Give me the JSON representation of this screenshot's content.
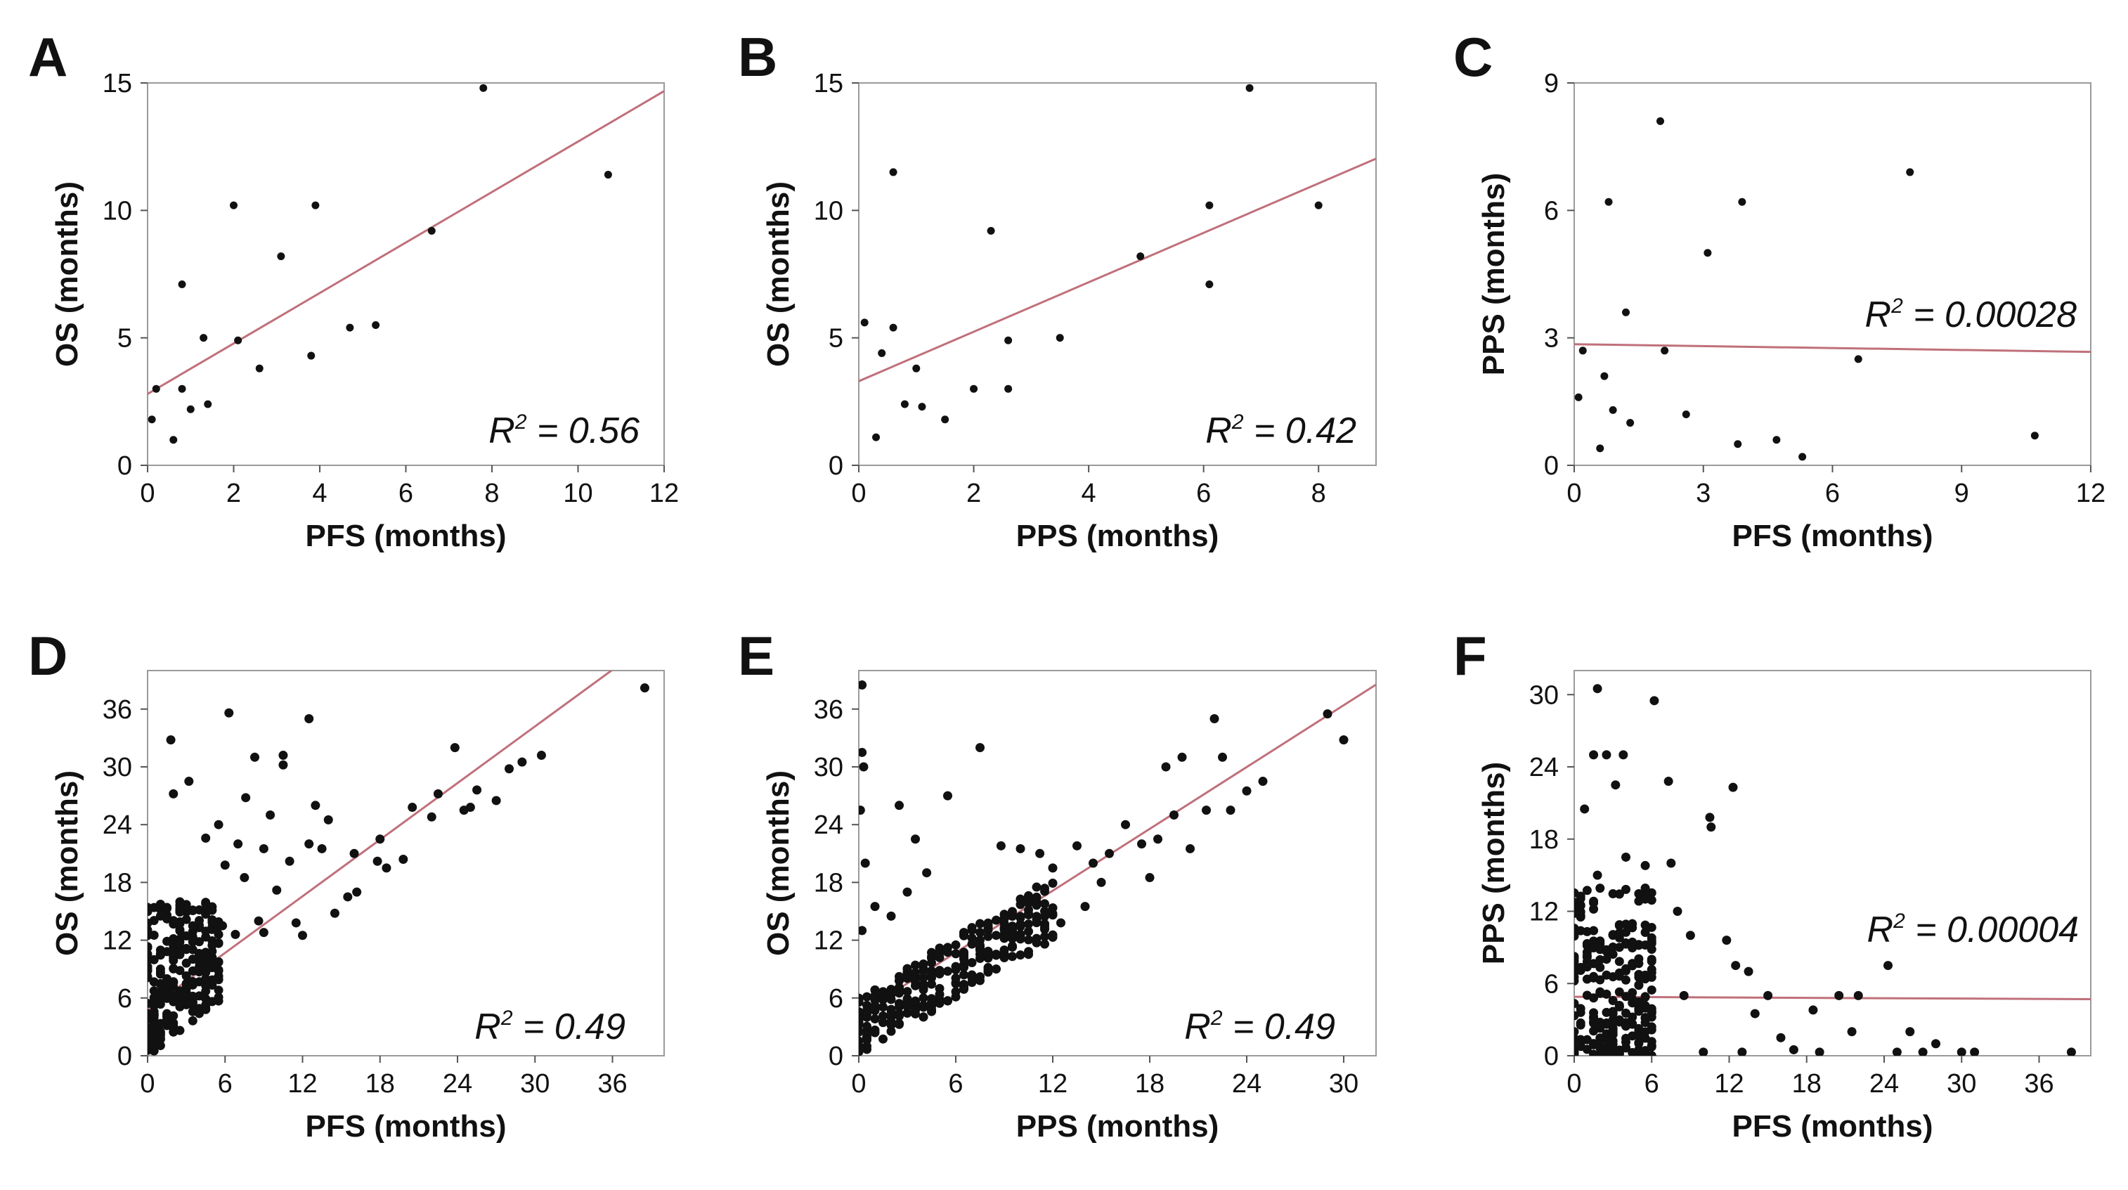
{
  "chart_data": [
    {
      "panel": "A",
      "type": "scatter",
      "xlabel": "PFS (months)",
      "ylabel": "OS (months)",
      "xlim": [
        0,
        12
      ],
      "ylim": [
        0,
        15
      ],
      "xticks": [
        0,
        2,
        4,
        6,
        8,
        10,
        12
      ],
      "yticks": [
        0,
        5,
        10,
        15
      ],
      "r2_label": "R",
      "r2_value": " = 0.56",
      "fit": {
        "intercept": 2.8,
        "slope": 0.99
      },
      "points": [
        [
          0.1,
          1.8
        ],
        [
          0.2,
          3.0
        ],
        [
          0.6,
          1.0
        ],
        [
          0.8,
          7.1
        ],
        [
          0.8,
          3.0
        ],
        [
          1.0,
          2.2
        ],
        [
          1.3,
          5.0
        ],
        [
          1.4,
          2.4
        ],
        [
          2.0,
          10.2
        ],
        [
          2.1,
          4.9
        ],
        [
          2.6,
          3.8
        ],
        [
          3.1,
          8.2
        ],
        [
          3.8,
          4.3
        ],
        [
          3.9,
          10.2
        ],
        [
          4.7,
          5.4
        ],
        [
          5.3,
          5.5
        ],
        [
          6.6,
          9.2
        ],
        [
          7.8,
          14.8
        ],
        [
          10.7,
          11.4
        ]
      ]
    },
    {
      "panel": "B",
      "type": "scatter",
      "xlabel": "PPS (months)",
      "ylabel": "OS (months)",
      "xlim": [
        0,
        9
      ],
      "ylim": [
        0,
        15
      ],
      "xticks": [
        0,
        2,
        4,
        6,
        8
      ],
      "yticks": [
        0,
        5,
        10,
        15
      ],
      "r2_label": "R",
      "r2_value": " = 0.42",
      "fit": {
        "intercept": 3.3,
        "slope": 0.97
      },
      "points": [
        [
          0.1,
          5.6
        ],
        [
          0.3,
          1.1
        ],
        [
          0.4,
          4.4
        ],
        [
          0.6,
          5.4
        ],
        [
          0.6,
          11.5
        ],
        [
          0.8,
          2.4
        ],
        [
          1.0,
          3.8
        ],
        [
          1.1,
          2.3
        ],
        [
          1.5,
          1.8
        ],
        [
          2.0,
          3.0
        ],
        [
          2.3,
          9.2
        ],
        [
          2.6,
          3.0
        ],
        [
          2.6,
          4.9
        ],
        [
          3.5,
          5.0
        ],
        [
          4.9,
          8.2
        ],
        [
          6.1,
          10.2
        ],
        [
          6.1,
          7.1
        ],
        [
          6.8,
          14.8
        ],
        [
          8.0,
          10.2
        ]
      ]
    },
    {
      "panel": "C",
      "type": "scatter",
      "xlabel": "PFS (months)",
      "ylabel": "PPS (months)",
      "xlim": [
        0,
        12
      ],
      "ylim": [
        0,
        9
      ],
      "xticks": [
        0,
        3,
        6,
        9,
        12
      ],
      "yticks": [
        0,
        3,
        6,
        9
      ],
      "r2_label": "R",
      "r2_value": " = 0.00028",
      "fit": {
        "intercept": 2.85,
        "slope": -0.015
      },
      "points": [
        [
          0.1,
          1.6
        ],
        [
          0.2,
          2.7
        ],
        [
          0.6,
          0.4
        ],
        [
          0.7,
          2.1
        ],
        [
          0.8,
          6.2
        ],
        [
          0.9,
          1.3
        ],
        [
          1.2,
          3.6
        ],
        [
          1.3,
          1.0
        ],
        [
          2.0,
          8.1
        ],
        [
          2.1,
          2.7
        ],
        [
          2.6,
          1.2
        ],
        [
          3.1,
          5.0
        ],
        [
          3.8,
          0.5
        ],
        [
          3.9,
          6.2
        ],
        [
          4.7,
          0.6
        ],
        [
          5.3,
          0.2
        ],
        [
          6.6,
          2.5
        ],
        [
          7.8,
          6.9
        ],
        [
          10.7,
          0.7
        ]
      ]
    },
    {
      "panel": "D",
      "type": "scatter",
      "xlabel": "PFS (months)",
      "ylabel": "OS (months)",
      "xlim": [
        0,
        40
      ],
      "ylim": [
        0,
        40
      ],
      "xticks": [
        0,
        6,
        12,
        18,
        24,
        30,
        36
      ],
      "yticks": [
        0,
        6,
        12,
        18,
        24,
        30,
        36
      ],
      "r2_label": "R",
      "r2_value": " = 0.49",
      "fit": {
        "intercept": 4.8,
        "slope": 0.98
      },
      "cluster": {
        "x_max": 5.5,
        "y_min": 0.3,
        "y_max": 16,
        "count": 260
      },
      "points": [
        [
          6.3,
          35.6
        ],
        [
          12.5,
          35.0
        ],
        [
          1.8,
          32.8
        ],
        [
          10.5,
          31.2
        ],
        [
          8.3,
          31.0
        ],
        [
          10.5,
          30.2
        ],
        [
          2.0,
          27.2
        ],
        [
          7.6,
          26.8
        ],
        [
          3.2,
          28.5
        ],
        [
          5.5,
          24.0
        ],
        [
          4.5,
          22.6
        ],
        [
          9.0,
          21.5
        ],
        [
          11.0,
          20.2
        ],
        [
          12.5,
          22.0
        ],
        [
          13.5,
          21.5
        ],
        [
          7.5,
          18.5
        ],
        [
          10.0,
          17.2
        ],
        [
          8.6,
          14.0
        ],
        [
          12.0,
          12.5
        ],
        [
          11.5,
          13.8
        ],
        [
          14.5,
          14.8
        ],
        [
          15.5,
          16.5
        ],
        [
          16.2,
          17.0
        ],
        [
          17.8,
          20.2
        ],
        [
          18.5,
          19.5
        ],
        [
          19.8,
          20.4
        ],
        [
          20.5,
          25.8
        ],
        [
          22.0,
          24.8
        ],
        [
          22.5,
          27.2
        ],
        [
          23.8,
          32.0
        ],
        [
          24.5,
          25.5
        ],
        [
          25.0,
          25.8
        ],
        [
          25.5,
          27.6
        ],
        [
          27.0,
          26.5
        ],
        [
          28.0,
          29.8
        ],
        [
          29.0,
          30.5
        ],
        [
          30.5,
          31.2
        ],
        [
          38.5,
          38.2
        ],
        [
          6.0,
          19.8
        ],
        [
          7.0,
          22.0
        ],
        [
          9.5,
          25.0
        ],
        [
          5.8,
          13.5
        ],
        [
          6.8,
          12.6
        ],
        [
          13.0,
          26.0
        ],
        [
          14.0,
          24.5
        ],
        [
          16.0,
          21.0
        ],
        [
          18.0,
          22.5
        ],
        [
          9.0,
          12.8
        ]
      ]
    },
    {
      "panel": "E",
      "type": "scatter",
      "xlabel": "PPS (months)",
      "ylabel": "OS (months)",
      "xlim": [
        0,
        32
      ],
      "ylim": [
        0,
        40
      ],
      "xticks": [
        0,
        6,
        12,
        18,
        24,
        30
      ],
      "yticks": [
        0,
        6,
        12,
        18,
        24,
        30,
        36
      ],
      "r2_label": "R",
      "r2_value": " = 0.49",
      "fit": {
        "intercept": 4.3,
        "slope": 1.07
      },
      "cluster": {
        "x_max": 12,
        "y_min": 0.3,
        "y_max": 18,
        "count": 300
      },
      "points": [
        [
          0.2,
          38.5
        ],
        [
          0.2,
          31.5
        ],
        [
          0.3,
          30.0
        ],
        [
          0.1,
          25.5
        ],
        [
          0.4,
          20.0
        ],
        [
          0.2,
          13.0
        ],
        [
          2.5,
          26.0
        ],
        [
          3.5,
          22.5
        ],
        [
          4.2,
          19.0
        ],
        [
          7.5,
          32.0
        ],
        [
          5.5,
          27.0
        ],
        [
          8.8,
          21.8
        ],
        [
          10.0,
          21.5
        ],
        [
          11.2,
          21.0
        ],
        [
          12.0,
          19.5
        ],
        [
          13.5,
          21.8
        ],
        [
          14.5,
          20.0
        ],
        [
          15.5,
          21.0
        ],
        [
          16.5,
          24.0
        ],
        [
          17.5,
          22.0
        ],
        [
          18.5,
          22.5
        ],
        [
          19.0,
          30.0
        ],
        [
          19.5,
          25.0
        ],
        [
          20.0,
          31.0
        ],
        [
          20.5,
          21.5
        ],
        [
          21.5,
          25.5
        ],
        [
          22.0,
          35.0
        ],
        [
          22.5,
          31.0
        ],
        [
          23.0,
          25.5
        ],
        [
          24.0,
          27.5
        ],
        [
          25.0,
          28.5
        ],
        [
          29.0,
          35.5
        ],
        [
          30.0,
          32.8
        ],
        [
          12.5,
          13.8
        ],
        [
          14.0,
          15.5
        ],
        [
          15.0,
          18.0
        ],
        [
          18.0,
          18.5
        ],
        [
          2.0,
          14.5
        ],
        [
          3.0,
          17.0
        ],
        [
          1.0,
          15.5
        ]
      ]
    },
    {
      "panel": "F",
      "type": "scatter",
      "xlabel": "PFS (months)",
      "ylabel": "PPS (months)",
      "xlim": [
        0,
        40
      ],
      "ylim": [
        0,
        32
      ],
      "xticks": [
        0,
        6,
        12,
        18,
        24,
        30,
        36
      ],
      "yticks": [
        0,
        6,
        12,
        18,
        24,
        30
      ],
      "r2_label": "R",
      "r2_value": " = 0.00004",
      "fit": {
        "intercept": 4.9,
        "slope": -0.005
      },
      "cluster": {
        "x_max": 6,
        "y_min": 0,
        "y_max": 14,
        "count": 260
      },
      "points": [
        [
          1.8,
          30.5
        ],
        [
          6.2,
          29.5
        ],
        [
          1.5,
          25.0
        ],
        [
          2.5,
          25.0
        ],
        [
          3.8,
          25.0
        ],
        [
          3.2,
          22.5
        ],
        [
          7.3,
          22.8
        ],
        [
          12.3,
          22.3
        ],
        [
          10.5,
          19.8
        ],
        [
          10.6,
          19.0
        ],
        [
          0.8,
          20.5
        ],
        [
          1.8,
          15.0
        ],
        [
          4.0,
          16.5
        ],
        [
          5.5,
          15.8
        ],
        [
          7.5,
          16.0
        ],
        [
          8.0,
          12.0
        ],
        [
          9.0,
          10.0
        ],
        [
          11.8,
          9.6
        ],
        [
          12.5,
          7.5
        ],
        [
          13.5,
          7.0
        ],
        [
          15.0,
          5.0
        ],
        [
          16.0,
          1.5
        ],
        [
          17.0,
          0.5
        ],
        [
          18.5,
          3.8
        ],
        [
          19.0,
          0.3
        ],
        [
          20.5,
          5.0
        ],
        [
          21.5,
          2.0
        ],
        [
          22.0,
          5.0
        ],
        [
          24.3,
          7.5
        ],
        [
          25.0,
          0.3
        ],
        [
          26.0,
          2.0
        ],
        [
          27.0,
          0.3
        ],
        [
          28.0,
          1.0
        ],
        [
          30.0,
          0.3
        ],
        [
          31.0,
          0.3
        ],
        [
          38.5,
          0.3
        ],
        [
          13.0,
          0.3
        ],
        [
          14.0,
          3.5
        ],
        [
          10.0,
          0.3
        ],
        [
          8.5,
          5.0
        ]
      ]
    }
  ]
}
